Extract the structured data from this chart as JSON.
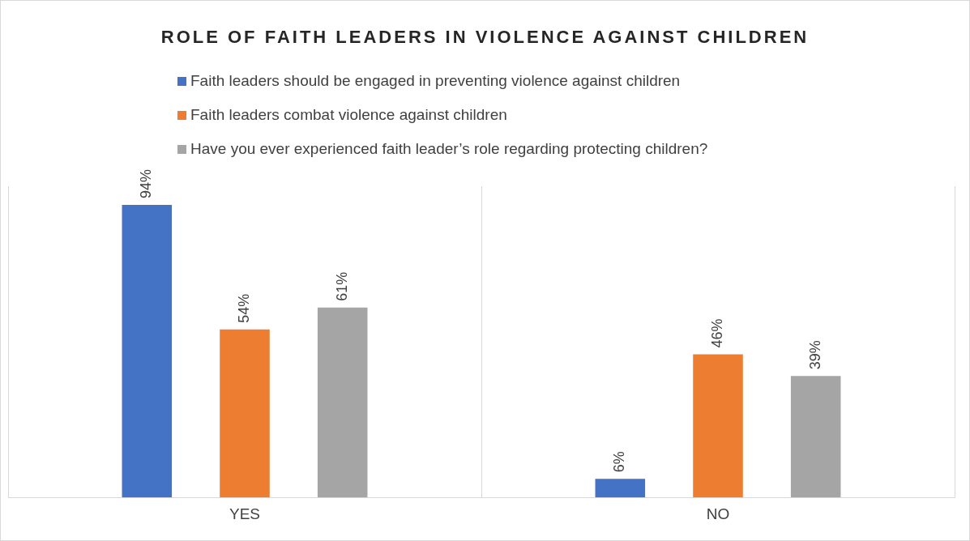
{
  "chart_data": {
    "type": "bar",
    "title": "ROLE OF FAITH LEADERS IN VIOLENCE AGAINST CHILDREN",
    "categories": [
      "YES",
      "NO"
    ],
    "series": [
      {
        "name": "Faith leaders should be engaged in preventing violence against children",
        "color": "#4472c4",
        "values": [
          94,
          6
        ],
        "value_labels": [
          "94%",
          "6%"
        ]
      },
      {
        "name": "Faith leaders combat violence against children",
        "color": "#ed7d31",
        "values": [
          54,
          46
        ],
        "value_labels": [
          "54%",
          "46%"
        ]
      },
      {
        "name": "Have you ever experienced faith leader’s role regarding protecting children?",
        "color": "#a5a5a5",
        "values": [
          61,
          39
        ],
        "value_labels": [
          "61%",
          "39%"
        ]
      }
    ],
    "grid": "x",
    "legend": "top"
  }
}
